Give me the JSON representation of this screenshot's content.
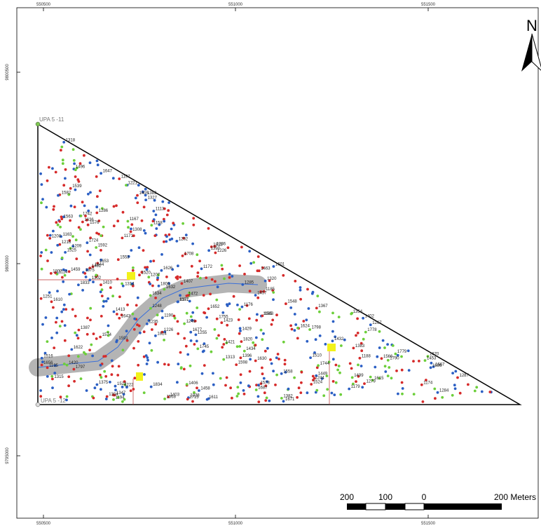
{
  "map": {
    "top_ticks": [
      "550500",
      "551000",
      "551500"
    ],
    "bottom_ticks": [
      "550500",
      "551000",
      "551500"
    ],
    "left_ticks": [
      "9800500",
      "9800000",
      "9795000"
    ],
    "plot_labels": [
      "UPA 5 -11",
      "UPA 5 -12"
    ],
    "north_label": "N",
    "scale_labels": [
      "200",
      "100",
      "0",
      "200 Meters"
    ],
    "colors": {
      "frame": "#000000",
      "boundary": "#000000",
      "buffer": "#b4b4b4",
      "stream": "#3a6fd8",
      "point_red": "#d62a2a",
      "point_blue": "#2b5fc4",
      "point_green": "#6ccf3a",
      "marker": "#f2f21a"
    }
  },
  "tree_labels": [
    "1158",
    "1244",
    "1248",
    "1246",
    "1236",
    "1235",
    "1432",
    "1347",
    "1429",
    "1434",
    "1267",
    "1421",
    "1423",
    "1496",
    "1165",
    "1304",
    "1338",
    "1354",
    "1413",
    "1167",
    "1226",
    "1255",
    "1279",
    "1382",
    "1420",
    "1327",
    "1410",
    "1499",
    "1558",
    "1553",
    "1563",
    "1226",
    "1222",
    "1216",
    "1320",
    "1406",
    "1407",
    "1449",
    "1453",
    "1592",
    "1622",
    "1670",
    "1171",
    "1172",
    "1287",
    "1318",
    "1315",
    "1405",
    "1403",
    "1624",
    "1626",
    "1677",
    "1114",
    "1113",
    "1314",
    "1313",
    "1367",
    "1402",
    "1481",
    "1548",
    "1615",
    "1611",
    "1610",
    "1671",
    "1667",
    "1107",
    "1174",
    "1285",
    "1284",
    "1308",
    "1510",
    "1582",
    "1583",
    "1598",
    "1601",
    "1630",
    "1632",
    "1686",
    "1687",
    "1744",
    "1176",
    "1163",
    "1179",
    "1207",
    "1209",
    "1458",
    "1457",
    "1371",
    "1396",
    "1302",
    "1375",
    "1387",
    "1382",
    "1463",
    "1516",
    "1539",
    "1524",
    "1591",
    "1745",
    "1742",
    "1790",
    "1797",
    "1815",
    "1755",
    "1208",
    "1221",
    "1286",
    "1390",
    "1383",
    "1459",
    "1472",
    "1522",
    "1520",
    "1574",
    "1566",
    "1568",
    "1653",
    "1644",
    "1652",
    "1656",
    "1708",
    "1724",
    "1798",
    "1779",
    "1778",
    "1807",
    "1806",
    "1833",
    "1834",
    "1188",
    "1190",
    "1197",
    "1194",
    "1251",
    "1292",
    "1375",
    "1525",
    "1576",
    "1578",
    "1634",
    "1636",
    "1643",
    "1647",
    "1715",
    "1820",
    "1824",
    "1185",
    "1195"
  ]
}
